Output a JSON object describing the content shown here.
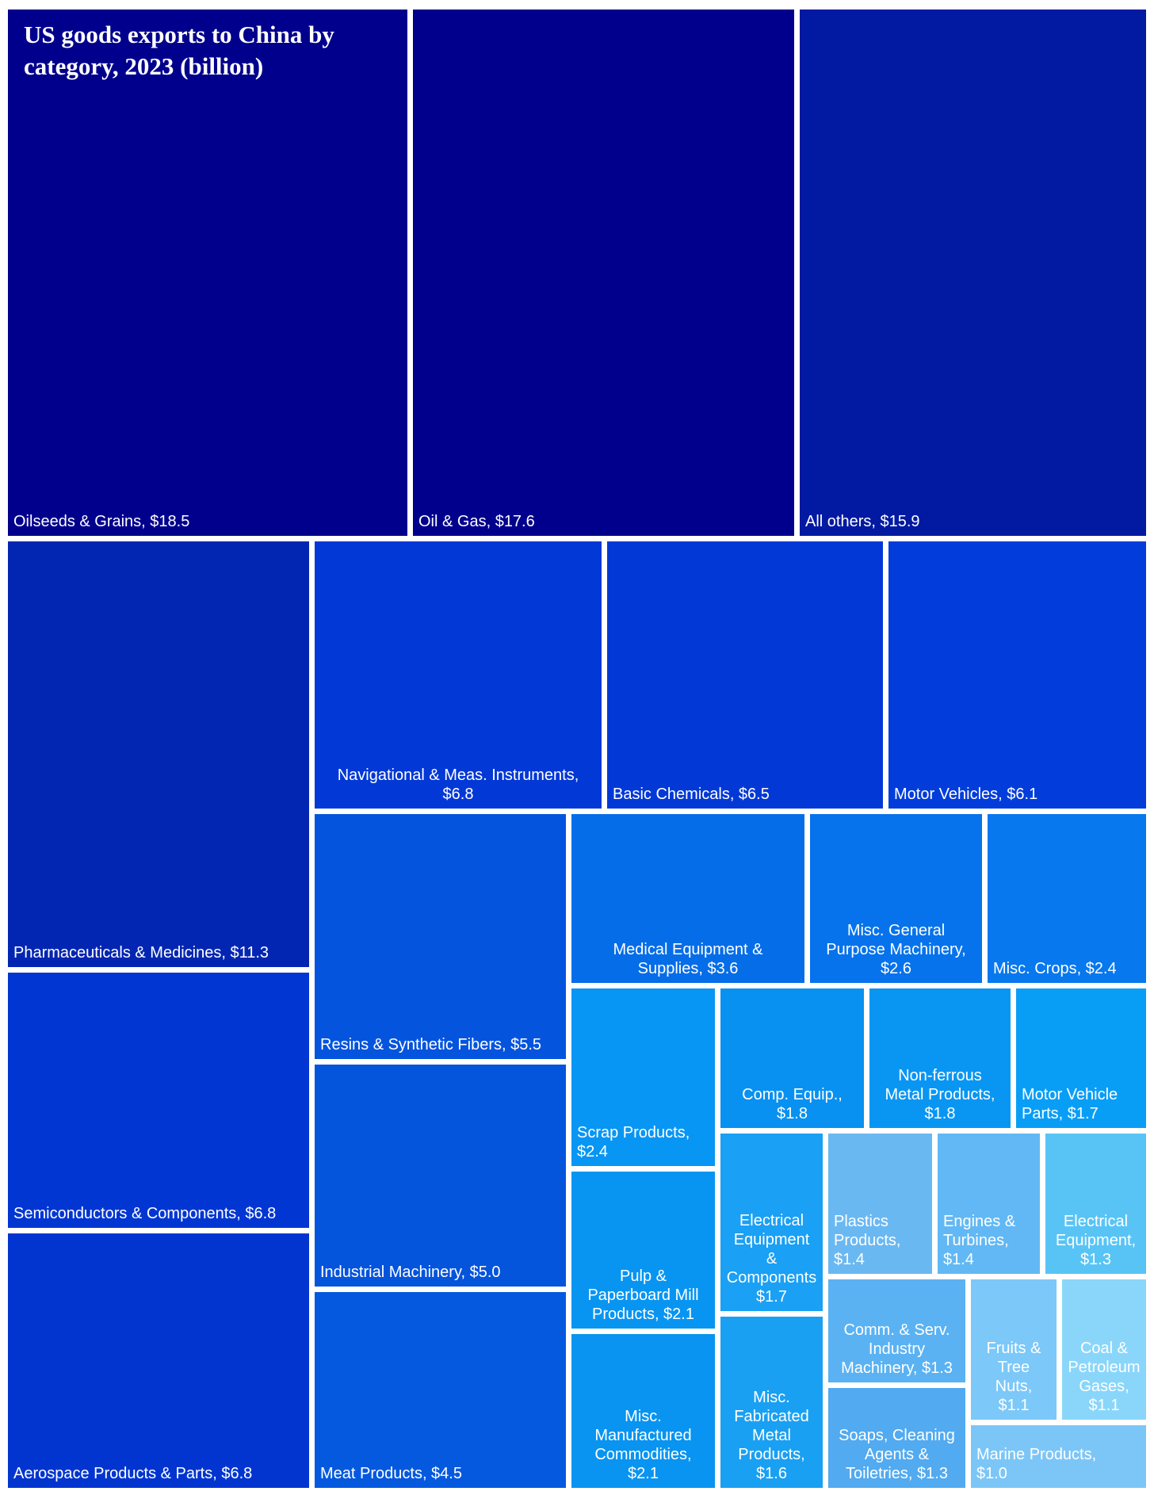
{
  "chart_data": {
    "type": "treemap",
    "title": "US goods exports to China by category, 2023 (billion)",
    "unit": "billion USD",
    "items": [
      {
        "name": "Oilseeds & Grains",
        "value": 18.5,
        "label": "Oilseeds & Grains, $18.5",
        "color": "#01008c"
      },
      {
        "name": "Oil & Gas",
        "value": 17.6,
        "label": "Oil & Gas, $17.6",
        "color": "#01008c"
      },
      {
        "name": "All others",
        "value": 15.9,
        "label": "All others, $15.9",
        "color": "#0219a2"
      },
      {
        "name": "Pharmaceuticals & Medicines",
        "value": 11.3,
        "label": "Pharmaceuticals & Medicines, $11.3",
        "color": "#0326b2"
      },
      {
        "name": "Navigational & Meas. Instruments",
        "value": 6.8,
        "label": "Navigational & Meas. Instruments,\n$6.8",
        "color": "#0238d6"
      },
      {
        "name": "Basic Chemicals",
        "value": 6.5,
        "label": "Basic Chemicals, $6.5",
        "color": "#0239d6"
      },
      {
        "name": "Motor Vehicles",
        "value": 6.1,
        "label": "Motor Vehicles, $6.1",
        "color": "#023ddb"
      },
      {
        "name": "Semiconductors & Components",
        "value": 6.8,
        "label": "Semiconductors & Components, $6.8",
        "color": "#0236d2"
      },
      {
        "name": "Aerospace Products & Parts",
        "value": 6.8,
        "label": "Aerospace Products & Parts, $6.8",
        "color": "#0235d0"
      },
      {
        "name": "Resins & Synthetic Fibers",
        "value": 5.5,
        "label": "Resins & Synthetic Fibers, $5.5",
        "color": "#0454de"
      },
      {
        "name": "Industrial Machinery",
        "value": 5.0,
        "label": "Industrial Machinery, $5.0",
        "color": "#0454dc"
      },
      {
        "name": "Meat Products",
        "value": 4.5,
        "label": "Meat Products, $4.5",
        "color": "#0459df"
      },
      {
        "name": "Medical Equipment & Supplies",
        "value": 3.6,
        "label": "Medical Equipment &\nSupplies, $3.6",
        "color": "#056de8"
      },
      {
        "name": "Misc. General Purpose Machinery",
        "value": 2.6,
        "label": "Misc. General\nPurpose Machinery,\n$2.6",
        "color": "#0673ec"
      },
      {
        "name": "Misc. Crops",
        "value": 2.4,
        "label": "Misc. Crops, $2.4",
        "color": "#0778ee"
      },
      {
        "name": "Scrap Products",
        "value": 2.4,
        "label": "Scrap Products,\n$2.4",
        "color": "#0896f4"
      },
      {
        "name": "Pulp & Paperboard Mill Products",
        "value": 2.1,
        "label": "Pulp &\nPaperboard Mill\nProducts, $2.1",
        "color": "#0895f2"
      },
      {
        "name": "Misc. Manufactured Commodities",
        "value": 2.1,
        "label": "Misc.\nManufactured\nCommodities,\n$2.1",
        "color": "#0894f0"
      },
      {
        "name": "Comp. Equip.",
        "value": 1.8,
        "label": "Comp. Equip.,\n$1.8",
        "color": "#0891f0"
      },
      {
        "name": "Non-ferrous Metal Products",
        "value": 1.8,
        "label": "Non-ferrous\nMetal Products,\n$1.8",
        "color": "#0996f3"
      },
      {
        "name": "Motor Vehicle Parts",
        "value": 1.7,
        "label": "Motor Vehicle\nParts, $1.7",
        "color": "#099ef6"
      },
      {
        "name": "Electrical Equipment & Components",
        "value": 1.7,
        "label": "Electrical\nEquipment\n&\nComponents\n$1.7",
        "color": "#1aa0f4"
      },
      {
        "name": "Misc. Fabricated Metal Products",
        "value": 1.6,
        "label": "Misc.\nFabricated\nMetal\nProducts,\n$1.6",
        "color": "#1aa0f2"
      },
      {
        "name": "Plastics Products",
        "value": 1.4,
        "label": "Plastics\nProducts,\n$1.4",
        "color": "#6ab8f2"
      },
      {
        "name": "Engines & Turbines",
        "value": 1.4,
        "label": "Engines &\nTurbines,\n$1.4",
        "color": "#62b8f4"
      },
      {
        "name": "Electrical Equipment",
        "value": 1.3,
        "label": "Electrical\nEquipment,\n$1.3",
        "color": "#58c4f6"
      },
      {
        "name": "Comm. & Serv. Industry Machinery",
        "value": 1.3,
        "label": "Comm. & Serv.\nIndustry\nMachinery, $1.3",
        "color": "#5ab2f2"
      },
      {
        "name": "Fruits & Tree Nuts",
        "value": 1.1,
        "label": "Fruits &\nTree\nNuts,\n$1.1",
        "color": "#7cc8f8"
      },
      {
        "name": "Coal & Petroleum Gases",
        "value": 1.1,
        "label": "Coal &\nPetroleum\nGases,\n$1.1",
        "color": "#8ad6fa"
      },
      {
        "name": "Soaps, Cleaning Agents & Toiletries",
        "value": 1.3,
        "label": "Soaps, Cleaning\nAgents &\nToiletries, $1.3",
        "color": "#52aaf0"
      },
      {
        "name": "Marine Products",
        "value": 1.0,
        "label": "Marine Products,\n$1.0",
        "color": "#7cc6f7"
      }
    ]
  }
}
